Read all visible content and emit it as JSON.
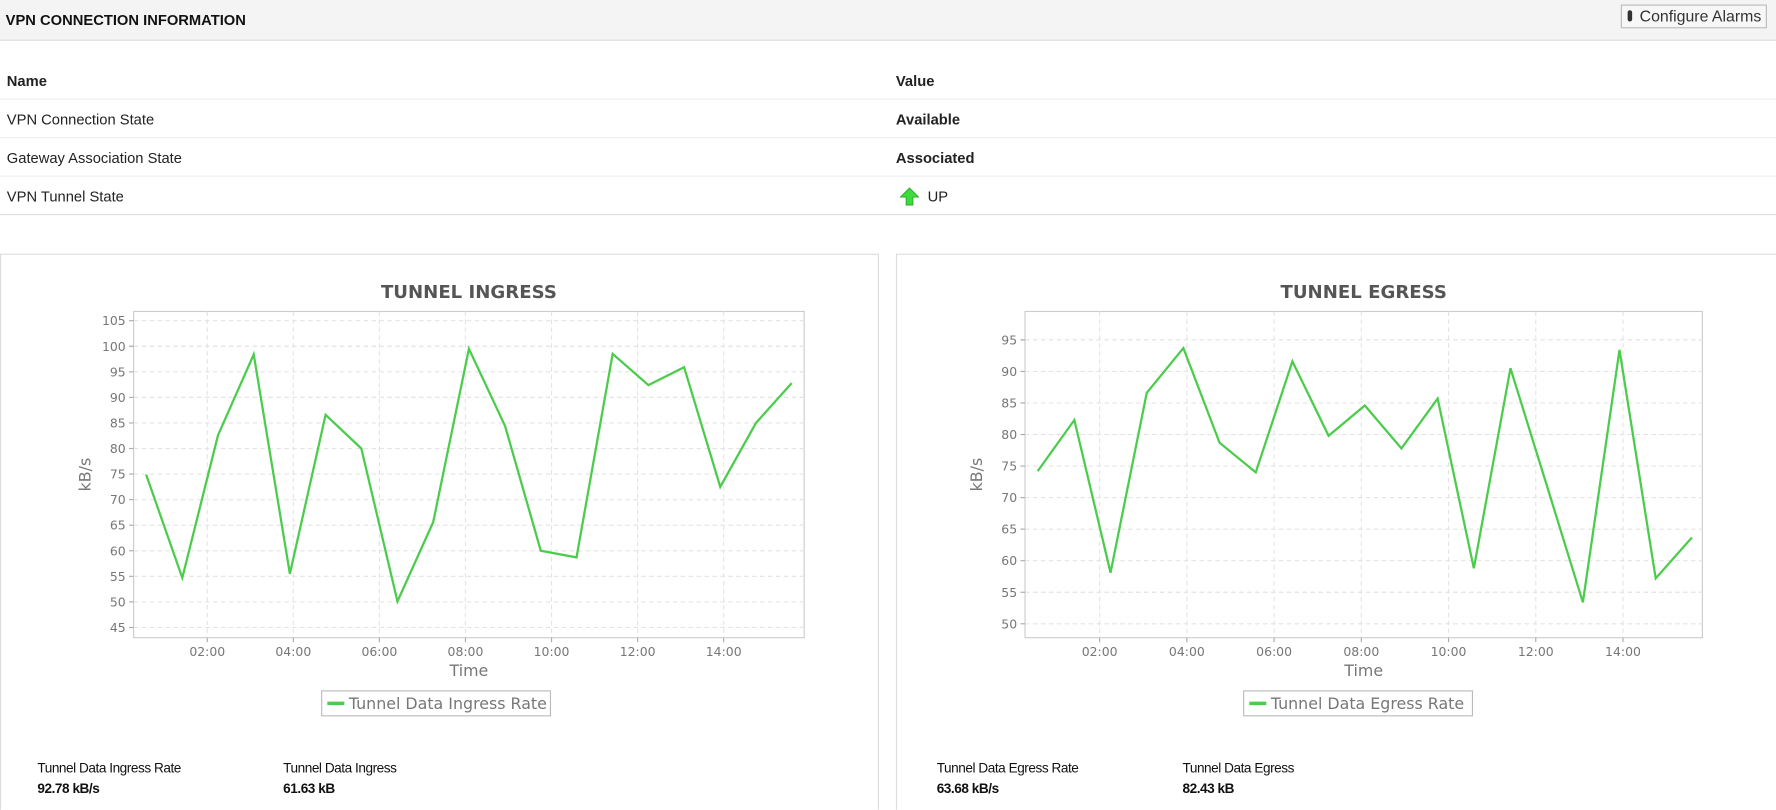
{
  "header": {
    "title": "VPN CONNECTION INFORMATION",
    "button": "Configure Alarms"
  },
  "table": {
    "columns": [
      "Name",
      "Value"
    ],
    "rows": [
      [
        "VPN Connection State",
        "Available"
      ],
      [
        "Gateway Association State",
        "Associated"
      ],
      [
        "VPN Tunnel State",
        "UP"
      ]
    ]
  },
  "chart_data": [
    {
      "type": "line",
      "title": "TUNNEL INGRESS",
      "x_label": "Time",
      "y_label": "kB/s",
      "x": [
        0.58,
        1.42,
        2.25,
        3.08,
        3.92,
        4.75,
        5.58,
        6.42,
        7.25,
        8.08,
        8.92,
        9.75,
        10.58,
        11.42,
        12.25,
        13.08,
        13.92,
        14.75,
        15.58
      ],
      "xlim": [
        0.29,
        15.87
      ],
      "xticks": [
        {
          "value": 2,
          "label": "02:00"
        },
        {
          "value": 4,
          "label": "04:00"
        },
        {
          "value": 6,
          "label": "06:00"
        },
        {
          "value": 8,
          "label": "08:00"
        },
        {
          "value": 10,
          "label": "10:00"
        },
        {
          "value": 12,
          "label": "12:00"
        },
        {
          "value": 14,
          "label": "14:00"
        }
      ],
      "ylim": [
        43,
        106.8
      ],
      "yticks": [
        45,
        50,
        55,
        60,
        65,
        70,
        75,
        80,
        85,
        90,
        95,
        100,
        105
      ],
      "grid": true,
      "series": [
        {
          "name": "Tunnel Data Ingress Rate",
          "color": "#4ccc4c",
          "values": [
            74.9,
            54.7,
            82.6,
            98.4,
            55.5,
            86.6,
            80,
            50.1,
            65.6,
            99.5,
            84.4,
            60,
            58.7,
            98.5,
            92.4,
            95.9,
            72.5,
            85,
            92.78
          ]
        }
      ]
    },
    {
      "type": "line",
      "title": "TUNNEL EGRESS",
      "x_label": "Time",
      "y_label": "kB/s",
      "x": [
        0.58,
        1.42,
        2.25,
        3.08,
        3.92,
        4.75,
        5.58,
        6.42,
        7.25,
        8.08,
        8.92,
        9.75,
        10.58,
        11.42,
        12.25,
        13.08,
        13.92,
        14.75,
        15.58
      ],
      "xlim": [
        0.29,
        15.82
      ],
      "xticks": [
        {
          "value": 2,
          "label": "02:00"
        },
        {
          "value": 4,
          "label": "04:00"
        },
        {
          "value": 6,
          "label": "06:00"
        },
        {
          "value": 8,
          "label": "08:00"
        },
        {
          "value": 10,
          "label": "10:00"
        },
        {
          "value": 12,
          "label": "12:00"
        },
        {
          "value": 14,
          "label": "14:00"
        }
      ],
      "ylim": [
        47.8,
        99.5
      ],
      "yticks": [
        50,
        55,
        60,
        65,
        70,
        75,
        80,
        85,
        90,
        95
      ],
      "grid": true,
      "series": [
        {
          "name": "Tunnel Data Egress Rate",
          "color": "#4ccc4c",
          "values": [
            74.2,
            82.3,
            58.1,
            86.6,
            93.7,
            78.7,
            74,
            91.6,
            79.8,
            84.6,
            77.8,
            85.7,
            58.8,
            90.5,
            72,
            53.4,
            93.4,
            57.2,
            63.68
          ]
        }
      ]
    }
  ],
  "stats": [
    [
      {
        "label": "Tunnel Data Ingress Rate",
        "value": "92.78 kB/s"
      },
      {
        "label": "Tunnel Data Ingress",
        "value": "61.63 kB"
      }
    ],
    [
      {
        "label": "Tunnel Data Egress Rate",
        "value": "63.68 kB/s"
      },
      {
        "label": "Tunnel Data Egress",
        "value": "82.43 kB"
      }
    ]
  ]
}
